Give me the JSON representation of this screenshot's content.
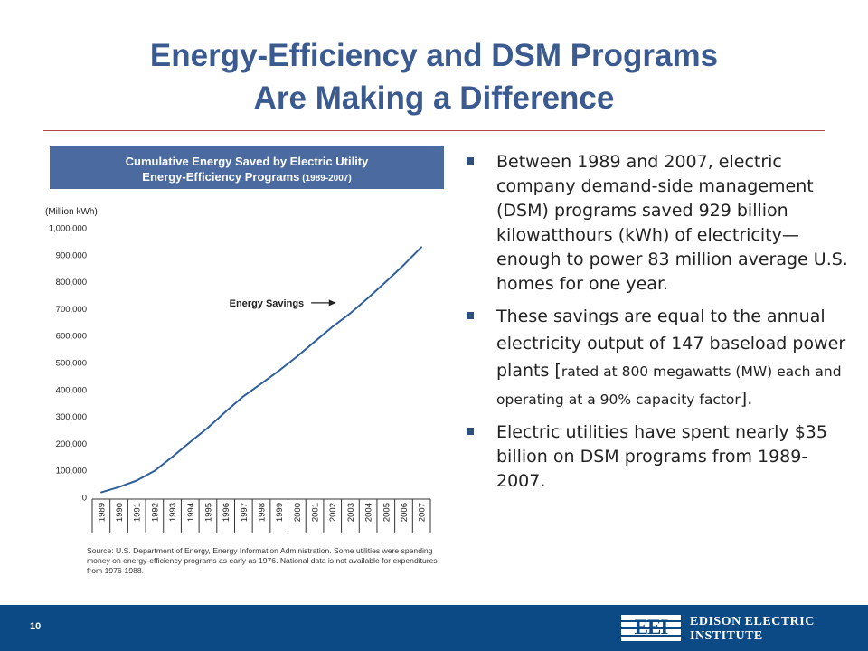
{
  "slide": {
    "title_line1": "Energy-Efficiency and DSM Programs",
    "title_line2": "Are Making a Difference",
    "page_number": "10"
  },
  "chart_banner": {
    "line1": "Cumulative Energy Saved by Electric Utility",
    "line2_main": "Energy-Efficiency Programs",
    "line2_small": " (1989-2007)"
  },
  "chart_data": {
    "type": "line",
    "title": "Cumulative Energy Saved by Electric Utility Energy-Efficiency Programs (1989-2007)",
    "ylabel": "(Million kWh)",
    "xlabel": "",
    "ylim": [
      0,
      1000000
    ],
    "y_ticks": [
      "0",
      "100,000",
      "200,000",
      "300,000",
      "400,000",
      "500,000",
      "600,000",
      "700,000",
      "800,000",
      "900,000",
      "1,000,000"
    ],
    "categories": [
      "1989",
      "1990",
      "1991",
      "1992",
      "1993",
      "1994",
      "1995",
      "1996",
      "1997",
      "1998",
      "1999",
      "2000",
      "2001",
      "2002",
      "2003",
      "2004",
      "2005",
      "2006",
      "2007"
    ],
    "series": [
      {
        "name": "Energy Savings",
        "values": [
          18000,
          38000,
          62000,
          98000,
          150000,
          205000,
          258000,
          318000,
          375000,
          422000,
          470000,
          522000,
          578000,
          633000,
          683000,
          740000,
          800000,
          862000,
          929000
        ]
      }
    ],
    "annotation": "Energy Savings",
    "grid": false,
    "source": "Source: U.S. Department of Energy, Energy Information Administration. Some utilities were spending money on energy-efficiency programs as early as 1976.  National data is not available for expenditures from 1976-1988."
  },
  "bullets": {
    "b1": "Between 1989 and 2007, electric company demand-side management (DSM) programs saved 929 billion kilowatthours (kWh) of electricity—enough to power 83 million average U.S. homes for one year.",
    "b2_main": "These savings are equal to the annual electricity output of 147 baseload power plants [",
    "b2_small": "rated at 800 megawatts (MW) each and operating at a 90% capacity factor",
    "b2_end": "].",
    "b3": "Electric utilities have spent nearly $35 billion on DSM programs from 1989-2007."
  },
  "footer": {
    "logo_letters": "EEI",
    "org_line1": "EDISON ELECTRIC",
    "org_line2": "INSTITUTE"
  },
  "colors": {
    "title": "#3b5a8f",
    "banner": "#4a6aa0",
    "line": "#2f5f9a",
    "footer": "#0b4a84",
    "bullet_marker": "#2e4e7c"
  }
}
